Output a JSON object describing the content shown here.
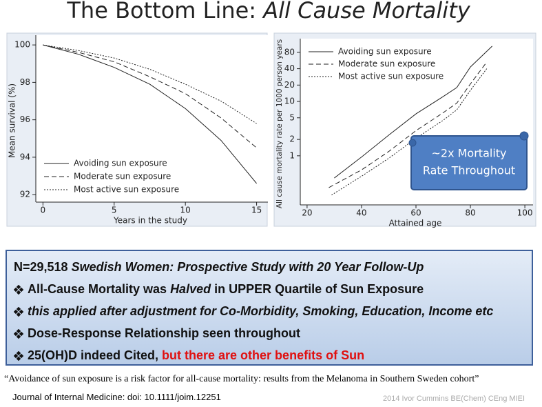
{
  "header": {
    "title_plain": "The Bottom Line: ",
    "title_italic": "All Cause Mortality"
  },
  "chart_data": [
    {
      "type": "line",
      "xlabel": "Years in the study",
      "ylabel": "Mean survival (%)",
      "x": [
        0,
        2.5,
        5,
        7.5,
        10,
        12.5,
        15
      ],
      "series": [
        {
          "name": "Avoiding sun exposure",
          "color": "#222222",
          "dash": "solid",
          "values": [
            100,
            99.5,
            98.8,
            97.9,
            96.6,
            94.9,
            92.6
          ]
        },
        {
          "name": "Moderate sun exposure",
          "color": "#222222",
          "dash": "dashed",
          "values": [
            100,
            99.6,
            99.1,
            98.3,
            97.4,
            96.1,
            94.5
          ]
        },
        {
          "name": "Most active sun exposure",
          "color": "#222222",
          "dash": "dotted",
          "values": [
            100,
            99.7,
            99.3,
            98.7,
            97.9,
            97.0,
            95.8
          ]
        }
      ],
      "xlim": [
        -0.5,
        15.6
      ],
      "xticks": [
        0,
        5,
        10,
        15
      ],
      "ylim": [
        91.6,
        100.3
      ],
      "yticks": [
        92,
        94,
        96,
        98,
        100
      ],
      "legend": "lower left"
    },
    {
      "type": "line",
      "xlabel": "Attained age",
      "ylabel": "All cause mortality rate per 1000 person years",
      "yscale": "log",
      "series": [
        {
          "name": "Avoiding sun exposure",
          "color": "#222222",
          "dash": "solid",
          "x": [
            30,
            40,
            50,
            60,
            70,
            75,
            80,
            88
          ],
          "values": [
            0.39,
            0.95,
            2.4,
            5.9,
            12.3,
            18,
            43,
            104
          ]
        },
        {
          "name": "Moderate sun exposure",
          "color": "#222222",
          "dash": "dashed",
          "x": [
            28,
            40,
            50,
            60,
            70,
            75,
            80,
            86
          ],
          "values": [
            0.26,
            0.55,
            1.2,
            2.9,
            6.2,
            9.3,
            21,
            53
          ]
        },
        {
          "name": "Most active sun exposure",
          "color": "#222222",
          "dash": "dotted",
          "x": [
            29,
            40,
            50,
            60,
            70,
            75,
            80,
            86
          ],
          "values": [
            0.19,
            0.42,
            0.9,
            2.1,
            4.5,
            7,
            16,
            40
          ]
        }
      ],
      "xlim": [
        17.5,
        102
      ],
      "xticks": [
        20,
        40,
        60,
        80,
        100
      ],
      "ylim": [
        0.125,
        120
      ],
      "yticks": [
        1,
        2,
        5,
        10,
        20,
        40,
        80
      ],
      "legend": "upper left",
      "annotation": [
        "~2x Mortality",
        "Rate Throughout"
      ]
    }
  ],
  "box": {
    "lines": [
      [
        "N=29,518 ",
        "Swedish Women: Prospective Study with 20 Year Follow-Up"
      ],
      [
        "All-Cause Mortality was ",
        "Halved",
        " in UPPER Quartile of Sun Exposure"
      ],
      [
        "this applied after adjustment for Co-Morbidity, Smoking, Education, Income etc"
      ],
      [
        "Dose-Response Relationship seen throughout"
      ],
      [
        "25(OH)D indeed Cited, ",
        "but there are other benefits of Sun"
      ]
    ]
  },
  "footer": {
    "citation": "“Avoidance of sun exposure is a risk factor for all-cause mortality: results from the Melanoma in Southern Sweden cohort”",
    "journal": "Journal of Internal Medicine: doi: 10.1111/joim.12251",
    "credit": "2014 Ivor Cummins BE(Chem) CEng MIEI"
  }
}
